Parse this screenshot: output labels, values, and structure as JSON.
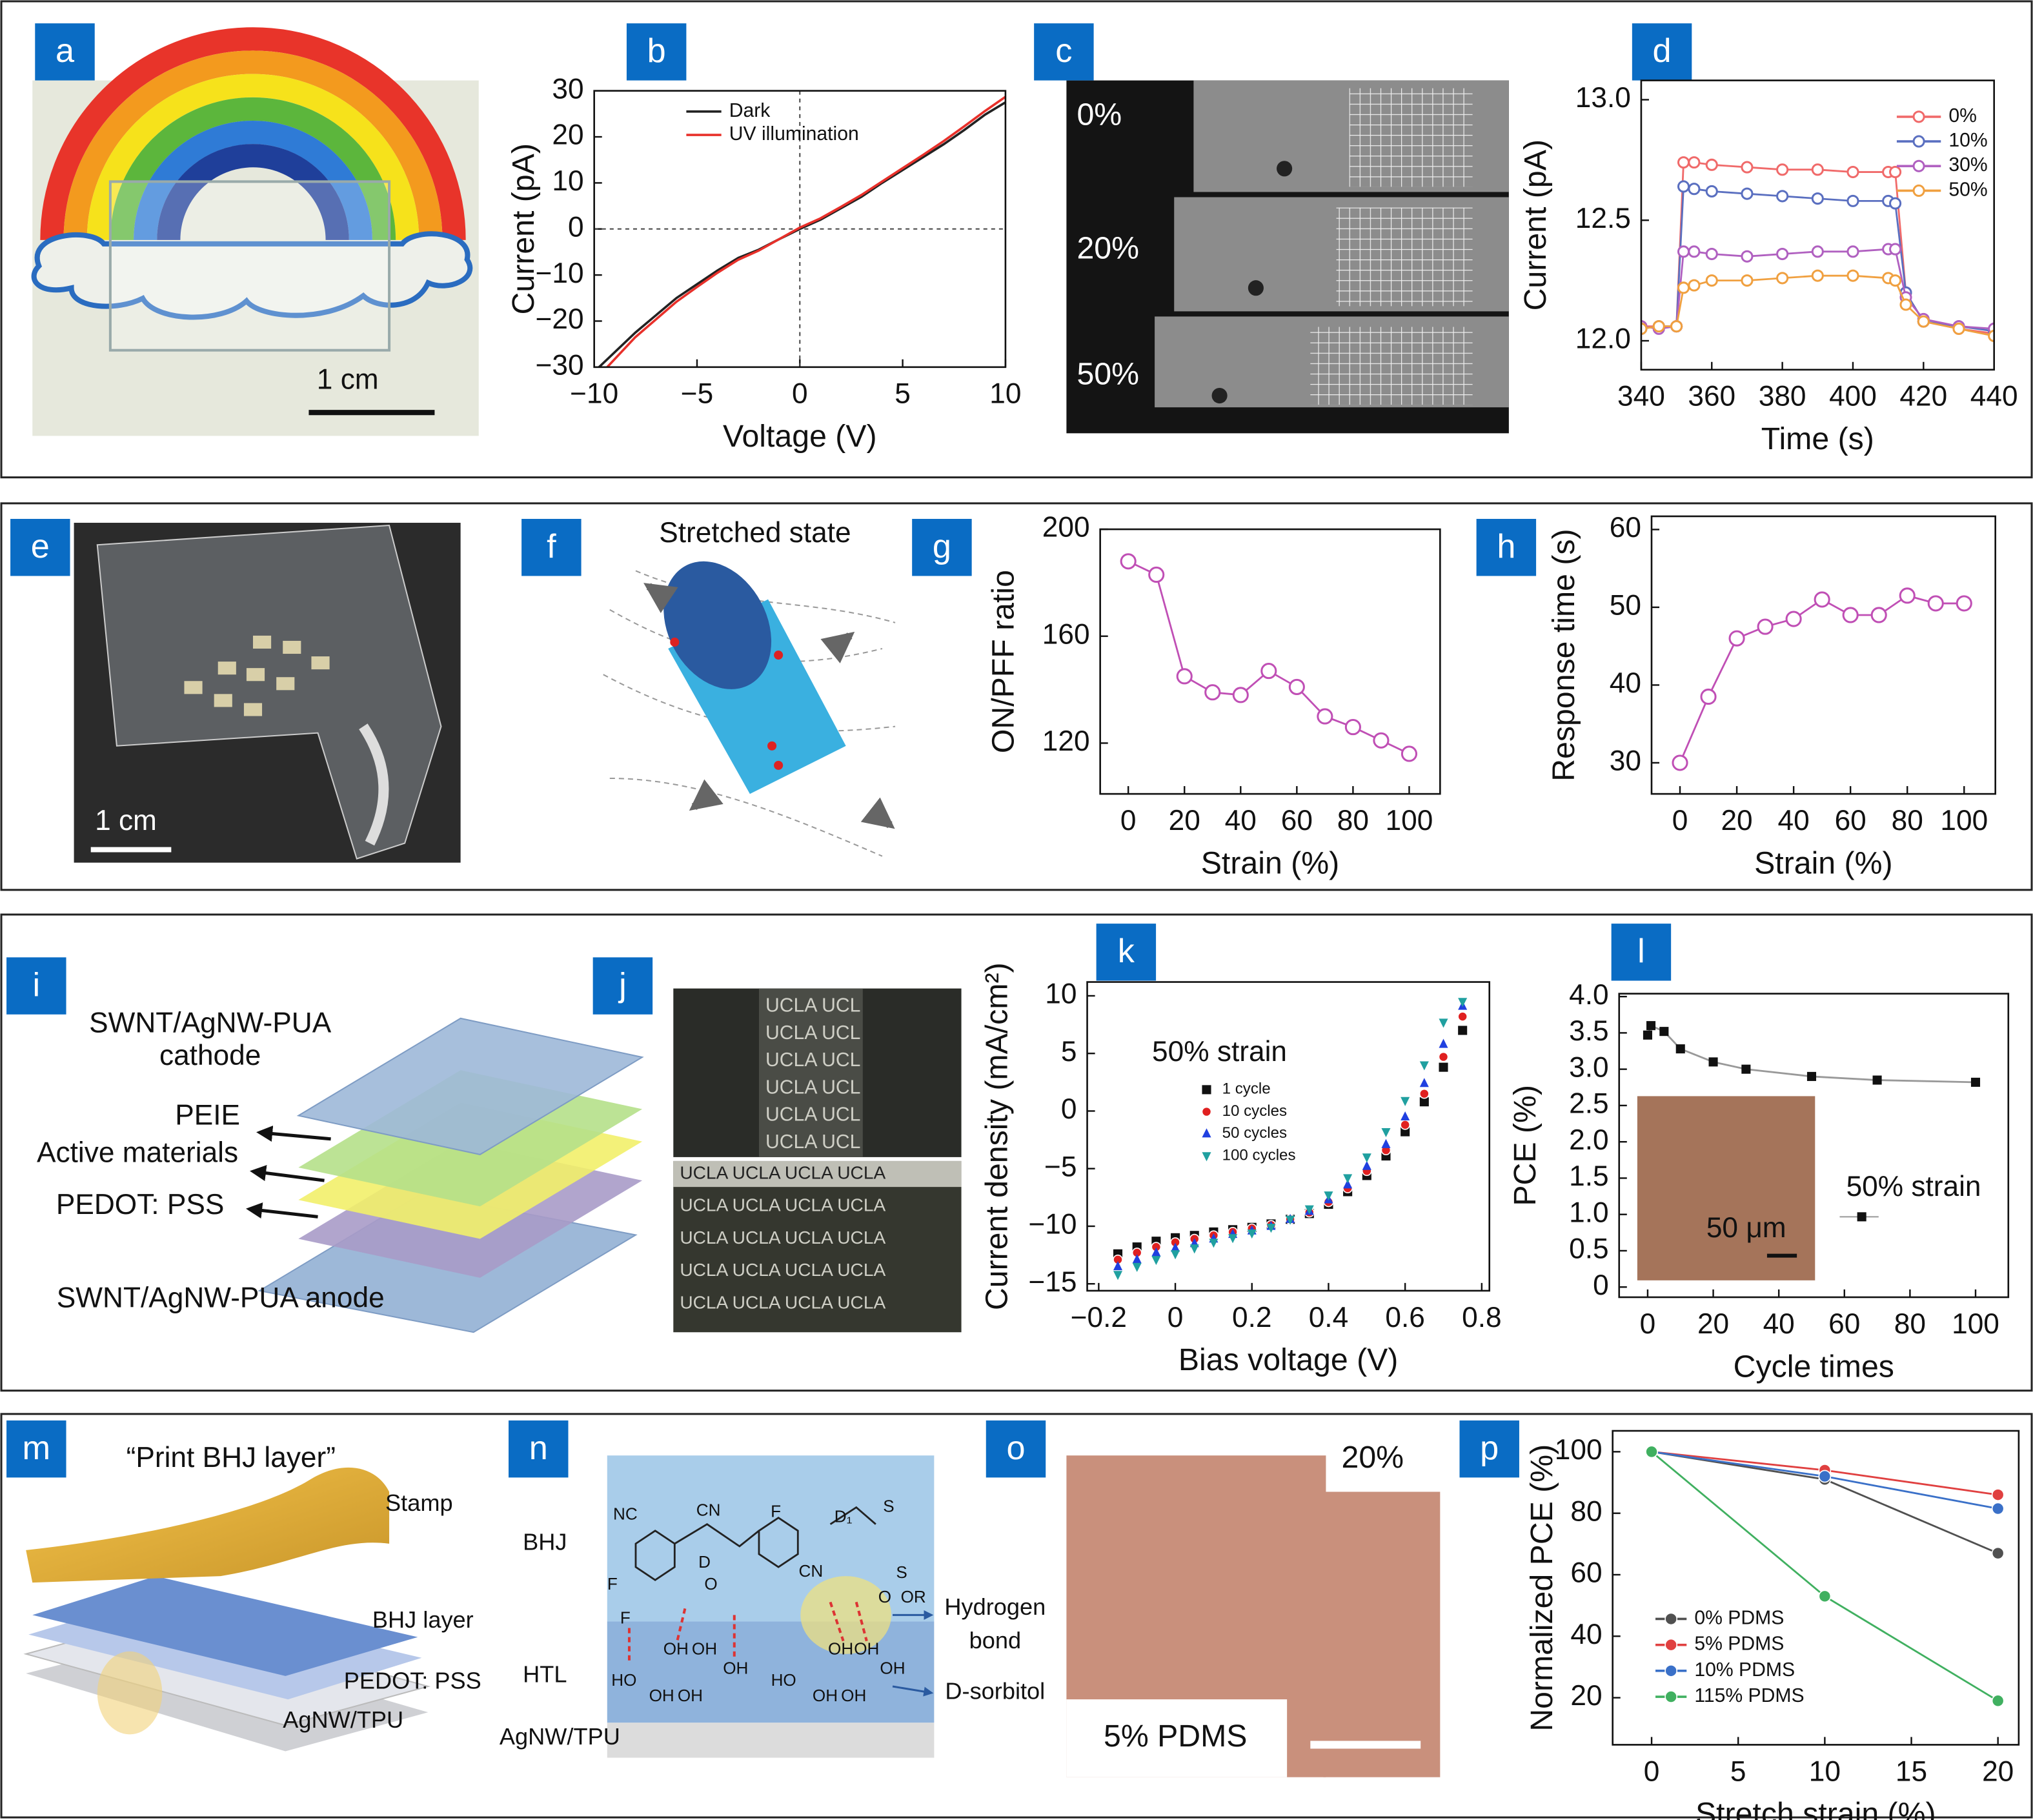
{
  "panels": [
    "a",
    "b",
    "c",
    "d",
    "e",
    "f",
    "g",
    "h",
    "i",
    "j",
    "k",
    "l",
    "m",
    "n",
    "o",
    "p"
  ],
  "images": {
    "a": {
      "scale_bar": "1 cm"
    },
    "c": {
      "strains": [
        "0%",
        "20%",
        "50%"
      ]
    },
    "e": {
      "scale_bar": "1 cm"
    },
    "f": {
      "title": "Stretched state"
    },
    "i": {
      "labels": [
        "SWNT/AgNW-PUA",
        "cathode",
        "PEIE",
        "Active materials",
        "PEDOT: PSS",
        "SWNT/AgNW-PUA anode"
      ]
    },
    "j": {
      "top_rows": [
        "UCLA UCL",
        "UCLA UCL",
        "UCLA UCL",
        "UCLA UCL",
        "UCLA UCL",
        "UCLA UCL"
      ],
      "bottom_rows": [
        "UCLA UCLA UCLA UCLA",
        "UCLA UCLA UCLA UCLA",
        "UCLA UCLA UCLA UCLA",
        "UCLA UCLA UCLA UCLA",
        "UCLA UCLA UCLA UCLA"
      ]
    },
    "l": {
      "scale_bar": "50 μm"
    },
    "m": {
      "title": "“Print BHJ layer”",
      "labels": [
        "Stamp",
        "BHJ layer",
        "PEDOT: PSS",
        "AgNW/TPU"
      ]
    },
    "n": {
      "layers": [
        "BHJ",
        "HTL",
        "AgNW/TPU"
      ],
      "callouts": [
        "Hydrogen",
        "bond",
        "D-sorbitol"
      ],
      "atoms": [
        "NC",
        "CN",
        "F",
        "D",
        "F",
        "O",
        "F",
        "CN",
        "D₁",
        "S",
        "S",
        "O",
        "OR",
        "OH",
        "OH",
        "OH",
        "HO",
        "OH",
        "OH",
        "OH",
        "OH",
        "OH",
        "HO",
        "OH",
        "OH"
      ]
    },
    "o": {
      "strain": "20%",
      "sample": "5% PDMS"
    }
  },
  "chart_data": [
    {
      "type": "line",
      "xlabel": "Voltage (V)",
      "ylabel": "Current (pA)",
      "zero_lines": true,
      "legend": "upper right",
      "xlim": [
        -10,
        10
      ],
      "xticks": [
        {
          "value": -10,
          "label": "−10"
        },
        {
          "value": -5,
          "label": "−5"
        },
        0,
        5,
        10
      ],
      "ylim": [
        -30,
        30
      ],
      "yticks": [
        {
          "value": -30,
          "label": "−30"
        },
        {
          "value": -20,
          "label": "−20"
        },
        {
          "value": -10,
          "label": "−10"
        },
        0,
        10,
        20,
        30
      ],
      "x": [
        -10,
        -8,
        -6,
        -5,
        -4,
        -3,
        -2,
        -1,
        0,
        1,
        2,
        3,
        4,
        5,
        6,
        7,
        8,
        9,
        10
      ],
      "series": [
        {
          "name": "Dark",
          "color": "#222222",
          "values": [
            -31,
            -22.5,
            -15,
            -12,
            -9,
            -6.3,
            -4.5,
            -2.2,
            0,
            2,
            4.5,
            7,
            10,
            12.8,
            15.6,
            18.4,
            21.5,
            24.8,
            27.5
          ]
        },
        {
          "name": "UV illumination",
          "color": "#e8302a",
          "values": [
            -33,
            -23.5,
            -15.8,
            -12.6,
            -9.5,
            -6.7,
            -4.7,
            -2.2,
            0.3,
            2.3,
            4.8,
            7.4,
            10.3,
            13.2,
            16.1,
            19.1,
            22.3,
            25.6,
            28.7
          ]
        }
      ]
    },
    {
      "type": "line",
      "xlabel": "Time (s)",
      "ylabel": "Current (pA)",
      "legend": "upper right",
      "xlim": [
        340,
        440
      ],
      "xticks": [
        340,
        360,
        380,
        400,
        420,
        440
      ],
      "ylim": [
        11.88,
        13.08
      ],
      "yticks": [
        {
          "value": 12,
          "label": "12.0"
        },
        12.5,
        {
          "value": 13,
          "label": "13.0"
        }
      ],
      "x": [
        340,
        345,
        350,
        352,
        355,
        360,
        370,
        380,
        390,
        400,
        410,
        412,
        415,
        420,
        430,
        440
      ],
      "series": [
        {
          "name": "0%",
          "color": "#f06a6a",
          "marker": "circle-open",
          "values": [
            12.06,
            12.06,
            12.06,
            12.74,
            12.74,
            12.73,
            12.72,
            12.71,
            12.71,
            12.7,
            12.7,
            12.7,
            12.2,
            12.08,
            12.05,
            12.03
          ]
        },
        {
          "name": "10%",
          "color": "#5a6fc0",
          "marker": "circle-open",
          "values": [
            12.05,
            12.06,
            12.06,
            12.64,
            12.63,
            12.62,
            12.61,
            12.6,
            12.59,
            12.58,
            12.58,
            12.57,
            12.2,
            12.08,
            12.06,
            12.04
          ]
        },
        {
          "name": "30%",
          "color": "#b060c0",
          "marker": "circle-open",
          "values": [
            12.06,
            12.05,
            12.06,
            12.37,
            12.37,
            12.36,
            12.35,
            12.36,
            12.37,
            12.37,
            12.38,
            12.38,
            12.18,
            12.09,
            12.06,
            12.05
          ]
        },
        {
          "name": "50%",
          "color": "#f0a040",
          "marker": "circle-open",
          "values": [
            12.05,
            12.06,
            12.06,
            12.22,
            12.23,
            12.25,
            12.25,
            12.26,
            12.27,
            12.27,
            12.26,
            12.25,
            12.15,
            12.08,
            12.05,
            12.02
          ]
        }
      ]
    },
    {
      "type": "line",
      "xlabel": "Strain (%)",
      "ylabel": "ON/PFF ratio",
      "xlim": [
        -10,
        111
      ],
      "xticks": [
        0,
        20,
        40,
        60,
        80,
        100
      ],
      "ylim": [
        101,
        200
      ],
      "yticks": [
        120,
        160,
        200
      ],
      "x": [
        0,
        10,
        20,
        30,
        40,
        50,
        60,
        70,
        80,
        90,
        100
      ],
      "color": "#c04fb5",
      "marker": "circle-open",
      "values": [
        188,
        183,
        145,
        139,
        138,
        147,
        141,
        130,
        126,
        121,
        116
      ]
    },
    {
      "type": "line",
      "xlabel": "Strain (%)",
      "ylabel": "Response time (s)",
      "xlim": [
        -10,
        111
      ],
      "xticks": [
        0,
        20,
        40,
        60,
        80,
        100
      ],
      "ylim": [
        26,
        61.7
      ],
      "yticks": [
        30,
        40,
        50,
        60
      ],
      "x": [
        0,
        10,
        20,
        30,
        40,
        50,
        60,
        70,
        80,
        90,
        100
      ],
      "color": "#c04fb5",
      "marker": "circle-open",
      "values": [
        30,
        38.5,
        46,
        47.5,
        48.5,
        51,
        49,
        49,
        51.5,
        50.5,
        50.5
      ]
    },
    {
      "type": "scatter",
      "xlabel": "Bias voltage (V)",
      "ylabel": "Current density (mA/cm²)",
      "annotation": "50% strain",
      "legend": "upper left",
      "xlim": [
        -0.23,
        0.82
      ],
      "xticks": [
        {
          "value": -0.2,
          "label": "−0.2"
        },
        0,
        0.2,
        0.4,
        0.6,
        0.8
      ],
      "ylim": [
        -15.6,
        11.2
      ],
      "yticks": [
        {
          "value": -15,
          "label": "−15"
        },
        {
          "value": -10,
          "label": "−10"
        },
        {
          "value": -5,
          "label": "−5"
        },
        0,
        5,
        10
      ],
      "x": [
        -0.15,
        -0.1,
        -0.05,
        0,
        0.05,
        0.1,
        0.15,
        0.2,
        0.25,
        0.3,
        0.35,
        0.4,
        0.45,
        0.5,
        0.55,
        0.6,
        0.65,
        0.7,
        0.75
      ],
      "series": [
        {
          "name": "1 cycle",
          "color": "#111111",
          "marker": "square",
          "values": [
            -12.4,
            -11.8,
            -11.3,
            -11,
            -10.8,
            -10.5,
            -10.3,
            -10.1,
            -9.8,
            -9.4,
            -8.9,
            -8.1,
            -7.0,
            -5.6,
            -3.9,
            -1.8,
            0.8,
            3.8,
            7.0
          ]
        },
        {
          "name": "10 cycles",
          "color": "#e02020",
          "marker": "circle",
          "values": [
            -12.9,
            -12.3,
            -11.8,
            -11.4,
            -11.1,
            -10.8,
            -10.5,
            -10.2,
            -9.9,
            -9.4,
            -8.8,
            -7.9,
            -6.7,
            -5.2,
            -3.4,
            -1.2,
            1.5,
            4.7,
            8.2
          ]
        },
        {
          "name": "50 cycles",
          "color": "#2040e0",
          "marker": "triangle-up",
          "values": [
            -13.5,
            -12.9,
            -12.3,
            -11.9,
            -11.5,
            -11.1,
            -10.7,
            -10.4,
            -10.0,
            -9.4,
            -8.7,
            -7.7,
            -6.4,
            -4.8,
            -2.9,
            -0.5,
            2.4,
            5.8,
            9.1
          ]
        },
        {
          "name": "100 cycles",
          "color": "#20a0a0",
          "marker": "triangle-down",
          "values": [
            -14.2,
            -13.5,
            -12.9,
            -12.4,
            -11.9,
            -11.4,
            -11.0,
            -10.6,
            -10.1,
            -9.4,
            -8.5,
            -7.3,
            -5.8,
            -4.0,
            -1.8,
            0.9,
            4.0,
            7.7,
            9.5
          ]
        }
      ]
    },
    {
      "type": "line",
      "xlabel": "Cycle times",
      "ylabel": "PCE (%)",
      "legend": "lower right",
      "xlim": [
        -8.7,
        110
      ],
      "xticks": [
        0,
        20,
        40,
        60,
        80,
        100
      ],
      "ylim": [
        -0.14,
        4.04
      ],
      "yticks": [
        0,
        {
          "value": 0.5,
          "label": "0.5"
        },
        {
          "value": 1,
          "label": "1.0"
        },
        1.5,
        {
          "value": 2,
          "label": "2.0"
        },
        2.5,
        {
          "value": 3,
          "label": "3.0"
        },
        3.5,
        {
          "value": 4,
          "label": "4.0"
        }
      ],
      "x": [
        0,
        1,
        5,
        10,
        20,
        30,
        50,
        70,
        100
      ],
      "series": [
        {
          "name": "50% strain",
          "color": "#111111",
          "line_color": "#999999",
          "marker": "square",
          "values": [
            3.47,
            3.6,
            3.52,
            3.28,
            3.1,
            3.0,
            2.9,
            2.85,
            2.82
          ]
        }
      ]
    },
    {
      "type": "line",
      "xlabel": "Stretch strain (%)",
      "ylabel": "Normalized PCE (%)",
      "legend": "lower left",
      "xlim": [
        -2.25,
        21.2
      ],
      "xticks": [
        0,
        5,
        10,
        15,
        20
      ],
      "ylim": [
        4.7,
        106.8
      ],
      "yticks": [
        20,
        40,
        60,
        80,
        100
      ],
      "x": [
        0,
        10,
        20
      ],
      "series": [
        {
          "name": "0% PDMS",
          "color": "#505050",
          "marker": "circle",
          "values": [
            100,
            91,
            67
          ]
        },
        {
          "name": "5% PDMS",
          "color": "#e04040",
          "marker": "circle",
          "values": [
            100,
            94,
            86
          ]
        },
        {
          "name": "10% PDMS",
          "color": "#3a70c8",
          "marker": "circle",
          "values": [
            100,
            92,
            81.5
          ]
        },
        {
          "name": "115% PDMS",
          "color": "#40b060",
          "marker": "circle",
          "values": [
            100,
            53,
            19
          ]
        }
      ]
    }
  ]
}
